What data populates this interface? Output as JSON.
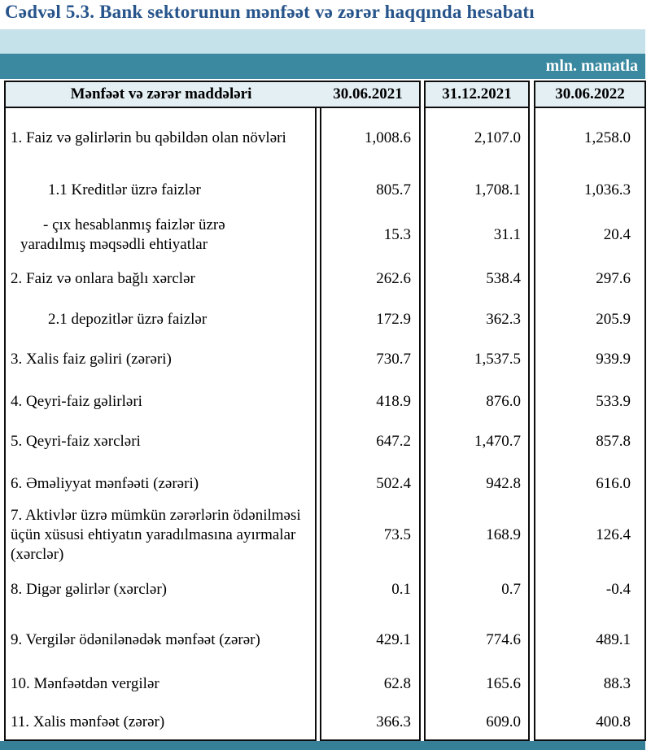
{
  "title": "Cədvəl 5.3. Bank sektorunun mənfəət və zərər haqqında hesabatı",
  "unit_label": "mln. manatla",
  "colors": {
    "title_blue": "#27558B",
    "band_light_blue": "#c5e1ea",
    "band_teal": "#3a89a1",
    "header_bg": "#e4eff4",
    "bottom_bar_teal": "#357f97",
    "border_black": "#0d0d0d"
  },
  "table": {
    "header": {
      "items_label": "Mənfəət və zərər maddələri",
      "columns": [
        "30.06.2021",
        "31.12.2021",
        "30.06.2022"
      ]
    },
    "rows": [
      {
        "level": 0,
        "label": "1. Faiz və gəlirlərin bu qəbildən olan növləri",
        "values": [
          "1,008.6",
          "2,107.0",
          "1,258.0"
        ]
      },
      {
        "level": 1,
        "label": "1.1 Kreditlər üzrə faizlər",
        "values": [
          "805.7",
          "1,708.1",
          "1,036.3"
        ]
      },
      {
        "level": 2,
        "label": "- çıx hesablanmış faizlər üzrə\nyaradılmış məqsədli ehtiyatlar",
        "values": [
          "15.3",
          "31.1",
          "20.4"
        ]
      },
      {
        "level": 0,
        "label": "2. Faiz və onlara bağlı xərclər",
        "values": [
          "262.6",
          "538.4",
          "297.6"
        ]
      },
      {
        "level": 1,
        "label": "2.1 depozitlər üzrə faizlər",
        "values": [
          "172.9",
          "362.3",
          "205.9"
        ]
      },
      {
        "level": 0,
        "label": "3. Xalis faiz gəliri (zərəri)",
        "values": [
          "730.7",
          "1,537.5",
          "939.9"
        ]
      },
      {
        "level": 0,
        "label": "4. Qeyri-faiz gəlirləri",
        "values": [
          "418.9",
          "876.0",
          "533.9"
        ]
      },
      {
        "level": 0,
        "label": "5. Qeyri-faiz xərcləri",
        "values": [
          "647.2",
          "1,470.7",
          "857.8"
        ]
      },
      {
        "level": 0,
        "label": "6. Əməliyyat mənfəəti (zərəri)",
        "values": [
          "502.4",
          "942.8",
          "616.0"
        ]
      },
      {
        "level": 0,
        "label": "7. Aktivlər üzrə mümkün zərərlərin ödənilməsi\nüçün xüsusi ehtiyatın yaradılmasına ayırmalar\n(xərclər)",
        "values": [
          "73.5",
          "168.9",
          "126.4"
        ]
      },
      {
        "level": 0,
        "label": "8. Digər gəlirlər (xərclər)",
        "values": [
          "0.1",
          "0.7",
          "-0.4"
        ]
      },
      {
        "level": 0,
        "label": "9. Vergilər ödənilənədək mənfəət (zərər)",
        "values": [
          "429.1",
          "774.6",
          "489.1"
        ]
      },
      {
        "level": 0,
        "label": "10. Mənfəətdən vergilər",
        "values": [
          "62.8",
          "165.6",
          "88.3"
        ]
      },
      {
        "level": 0,
        "label": "11. Xalis mənfəət (zərər)",
        "values": [
          "366.3",
          "609.0",
          "400.8"
        ]
      }
    ]
  }
}
